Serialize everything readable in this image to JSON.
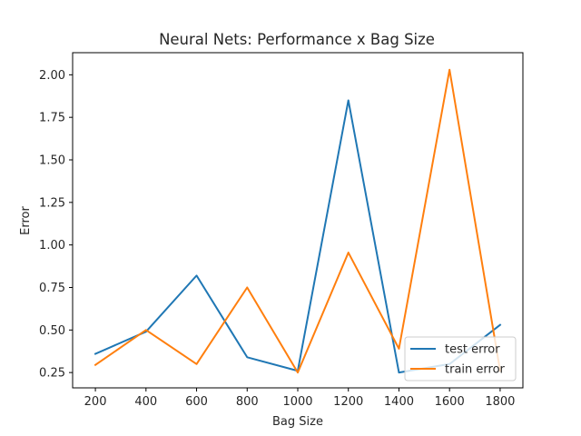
{
  "chart_data": {
    "type": "line",
    "title": "Neural Nets: Performance x Bag Size",
    "xlabel": "Bag Size",
    "ylabel": "Error",
    "x": [
      200,
      400,
      600,
      800,
      1000,
      1200,
      1400,
      1600,
      1800
    ],
    "xticks": [
      "200",
      "400",
      "600",
      "800",
      "1000",
      "1200",
      "1400",
      "1600",
      "1800"
    ],
    "yticks": [
      "0.25",
      "0.50",
      "0.75",
      "1.00",
      "1.25",
      "1.50",
      "1.75",
      "2.00"
    ],
    "xlim": [
      110,
      1890
    ],
    "ylim": [
      0.16,
      2.13
    ],
    "grid": false,
    "legend_position": "lower-right",
    "series": [
      {
        "name": "test error",
        "color": "#1f77b4",
        "values": [
          0.36,
          0.49,
          0.82,
          0.34,
          0.26,
          1.85,
          0.25,
          0.3,
          0.53
        ]
      },
      {
        "name": "train error",
        "color": "#ff7f0e",
        "values": [
          0.295,
          0.5,
          0.3,
          0.75,
          0.25,
          0.955,
          0.39,
          2.03,
          0.26
        ]
      }
    ]
  }
}
